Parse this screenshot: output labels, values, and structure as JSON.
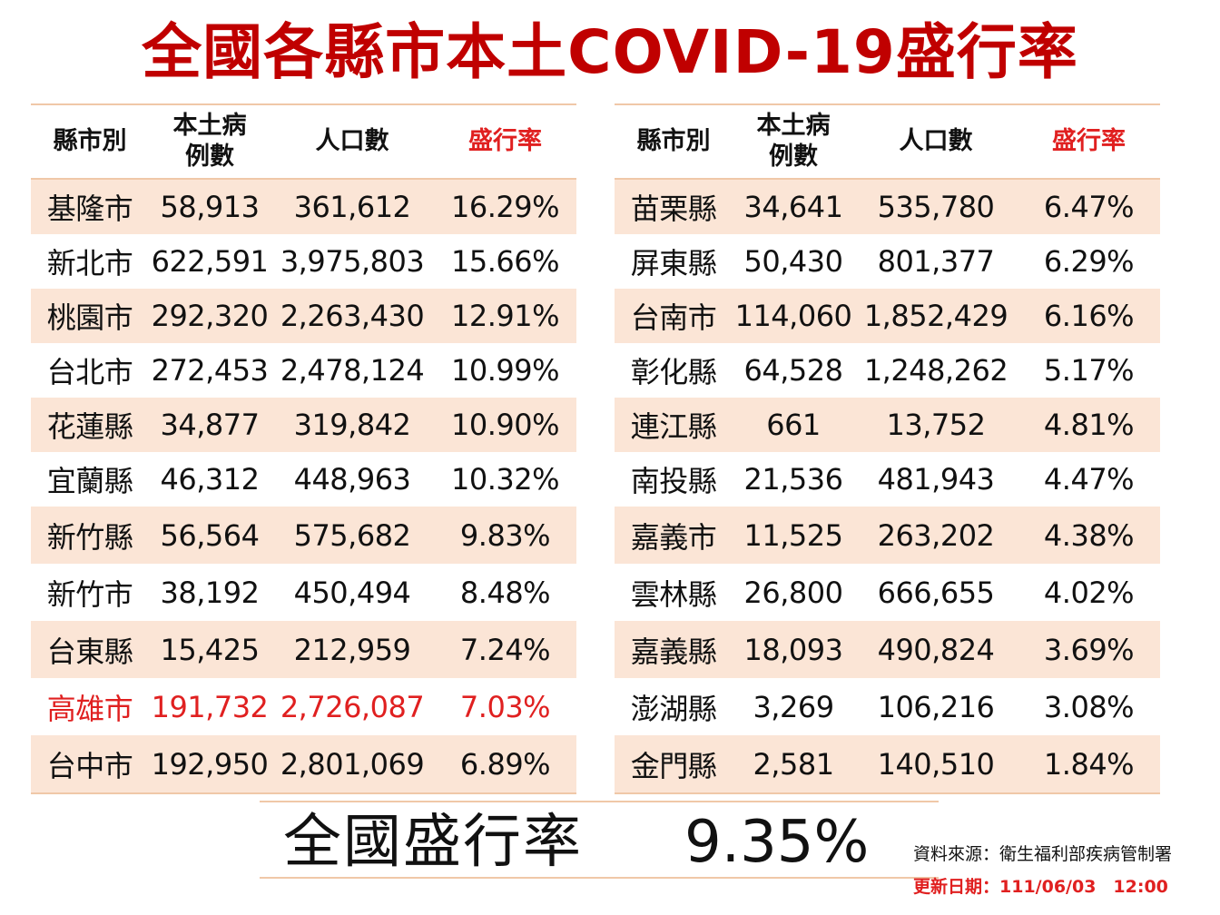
{
  "title": "全國各縣市本土COVID-19盛行率",
  "headers": {
    "county": "縣市別",
    "cases_line1": "本土病",
    "cases_line2": "例數",
    "population": "人口數",
    "rate": "盛行率"
  },
  "left_rows": [
    {
      "county": "基隆市",
      "cases": "58,913",
      "population": "361,612",
      "rate": "16.29%"
    },
    {
      "county": "新北市",
      "cases": "622,591",
      "population": "3,975,803",
      "rate": "15.66%"
    },
    {
      "county": "桃園市",
      "cases": "292,320",
      "population": "2,263,430",
      "rate": "12.91%"
    },
    {
      "county": "台北市",
      "cases": "272,453",
      "population": "2,478,124",
      "rate": "10.99%"
    },
    {
      "county": "花蓮縣",
      "cases": "34,877",
      "population": "319,842",
      "rate": "10.90%"
    },
    {
      "county": "宜蘭縣",
      "cases": "46,312",
      "population": "448,963",
      "rate": "10.32%"
    },
    {
      "county": "新竹縣",
      "cases": "56,564",
      "population": "575,682",
      "rate": "9.83%"
    },
    {
      "county": "新竹市",
      "cases": "38,192",
      "population": "450,494",
      "rate": "8.48%"
    },
    {
      "county": "台東縣",
      "cases": "15,425",
      "population": "212,959",
      "rate": "7.24%"
    },
    {
      "county": "高雄市",
      "cases": "191,732",
      "population": "2,726,087",
      "rate": "7.03%"
    },
    {
      "county": "台中市",
      "cases": "192,950",
      "population": "2,801,069",
      "rate": "6.89%"
    }
  ],
  "right_rows": [
    {
      "county": "苗栗縣",
      "cases": "34,641",
      "population": "535,780",
      "rate": "6.47%"
    },
    {
      "county": "屏東縣",
      "cases": "50,430",
      "population": "801,377",
      "rate": "6.29%"
    },
    {
      "county": "台南市",
      "cases": "114,060",
      "population": "1,852,429",
      "rate": "6.16%"
    },
    {
      "county": "彰化縣",
      "cases": "64,528",
      "population": "1,248,262",
      "rate": "5.17%"
    },
    {
      "county": "連江縣",
      "cases": "661",
      "population": "13,752",
      "rate": "4.81%"
    },
    {
      "county": "南投縣",
      "cases": "21,536",
      "population": "481,943",
      "rate": "4.47%"
    },
    {
      "county": "嘉義市",
      "cases": "11,525",
      "population": "263,202",
      "rate": "4.38%"
    },
    {
      "county": "雲林縣",
      "cases": "26,800",
      "population": "666,655",
      "rate": "4.02%"
    },
    {
      "county": "嘉義縣",
      "cases": "18,093",
      "population": "490,824",
      "rate": "3.69%"
    },
    {
      "county": "澎湖縣",
      "cases": "3,269",
      "population": "106,216",
      "rate": "3.08%"
    },
    {
      "county": "金門縣",
      "cases": "2,581",
      "population": "140,510",
      "rate": "1.84%"
    }
  ],
  "national": {
    "label": "全國盛行率",
    "value": "9.35%"
  },
  "source": "資料來源：衛生福利部疾病管制署",
  "updated": "更新日期：111/06/03　12:00",
  "colors": {
    "title": "#c00000",
    "highlight": "#e02020",
    "row_shade": "#fbe5d6",
    "rule": "#f0c8a8"
  }
}
